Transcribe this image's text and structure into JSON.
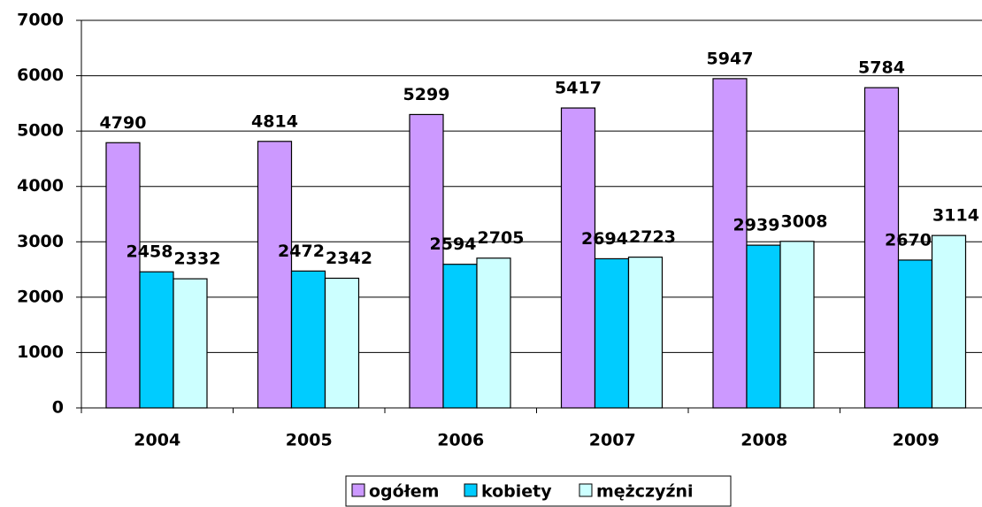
{
  "chart_data": {
    "type": "bar",
    "categories": [
      "2004",
      "2005",
      "2006",
      "2007",
      "2008",
      "2009"
    ],
    "series": [
      {
        "name": "ogółem",
        "color": "#cc99ff",
        "values": [
          4790,
          4814,
          5299,
          5417,
          5947,
          5784
        ]
      },
      {
        "name": "kobiety",
        "color": "#00ccff",
        "values": [
          2458,
          2472,
          2594,
          2694,
          2939,
          2670
        ]
      },
      {
        "name": "mężczyźni",
        "color": "#ccffff",
        "values": [
          2332,
          2342,
          2705,
          2723,
          3008,
          3114
        ]
      }
    ],
    "ylim": [
      0,
      7000
    ],
    "yticks": [
      0,
      1000,
      2000,
      3000,
      4000,
      5000,
      6000,
      7000
    ],
    "grid": true,
    "legend": "bottom"
  }
}
